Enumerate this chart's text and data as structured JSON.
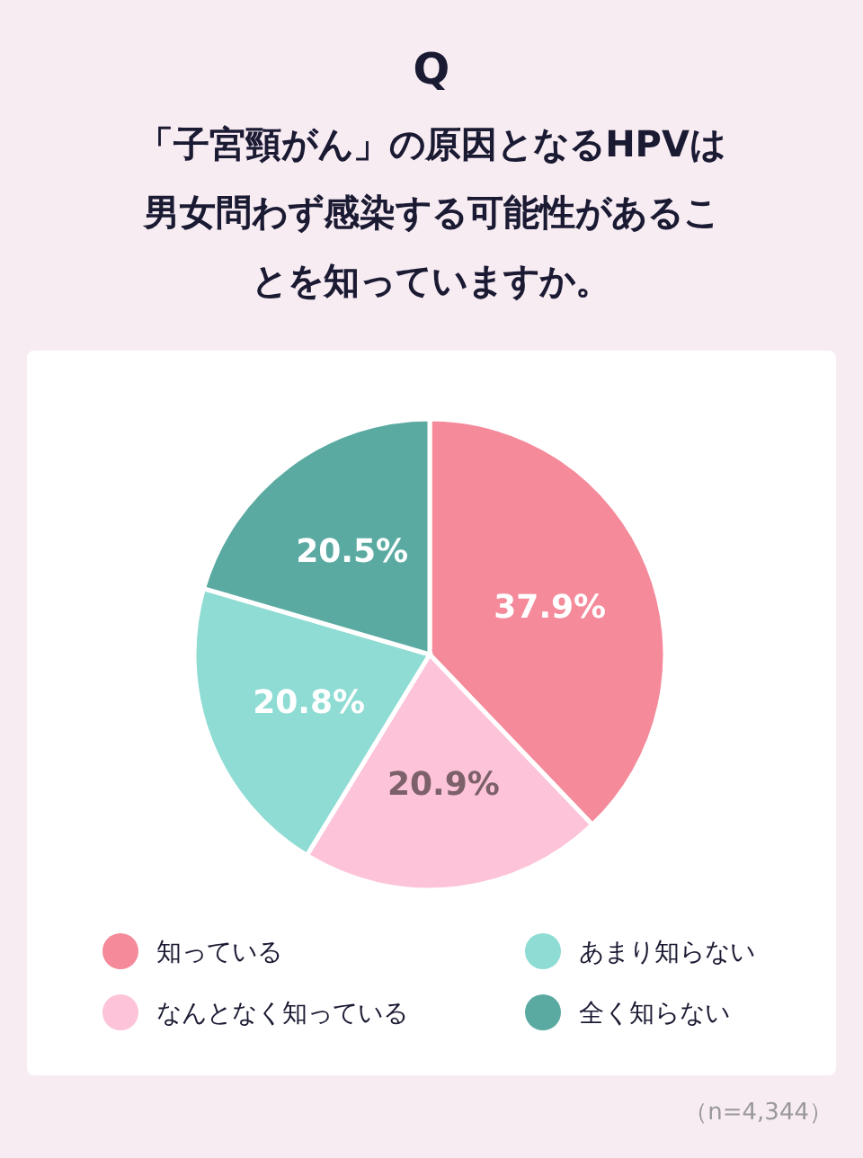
{
  "chart_data": {
    "type": "pie",
    "title": "Q",
    "subtitle": "「子宮頸がん」の原因となるHPVは男女問わず感染する可能性があることを知っていますか。",
    "categories": [
      "知っている",
      "なんとなく知っている",
      "あまり知らない",
      "全く知らない"
    ],
    "values": [
      37.9,
      20.9,
      20.8,
      20.5
    ],
    "colors": [
      "#f48a9a",
      "#fdc3d8",
      "#8edcd4",
      "#5aaaa2"
    ],
    "value_labels": [
      "37.9%",
      "20.9%",
      "20.8%",
      "20.5%"
    ],
    "legend": "bottom",
    "annotations": [
      "（n=4,344）"
    ]
  }
}
